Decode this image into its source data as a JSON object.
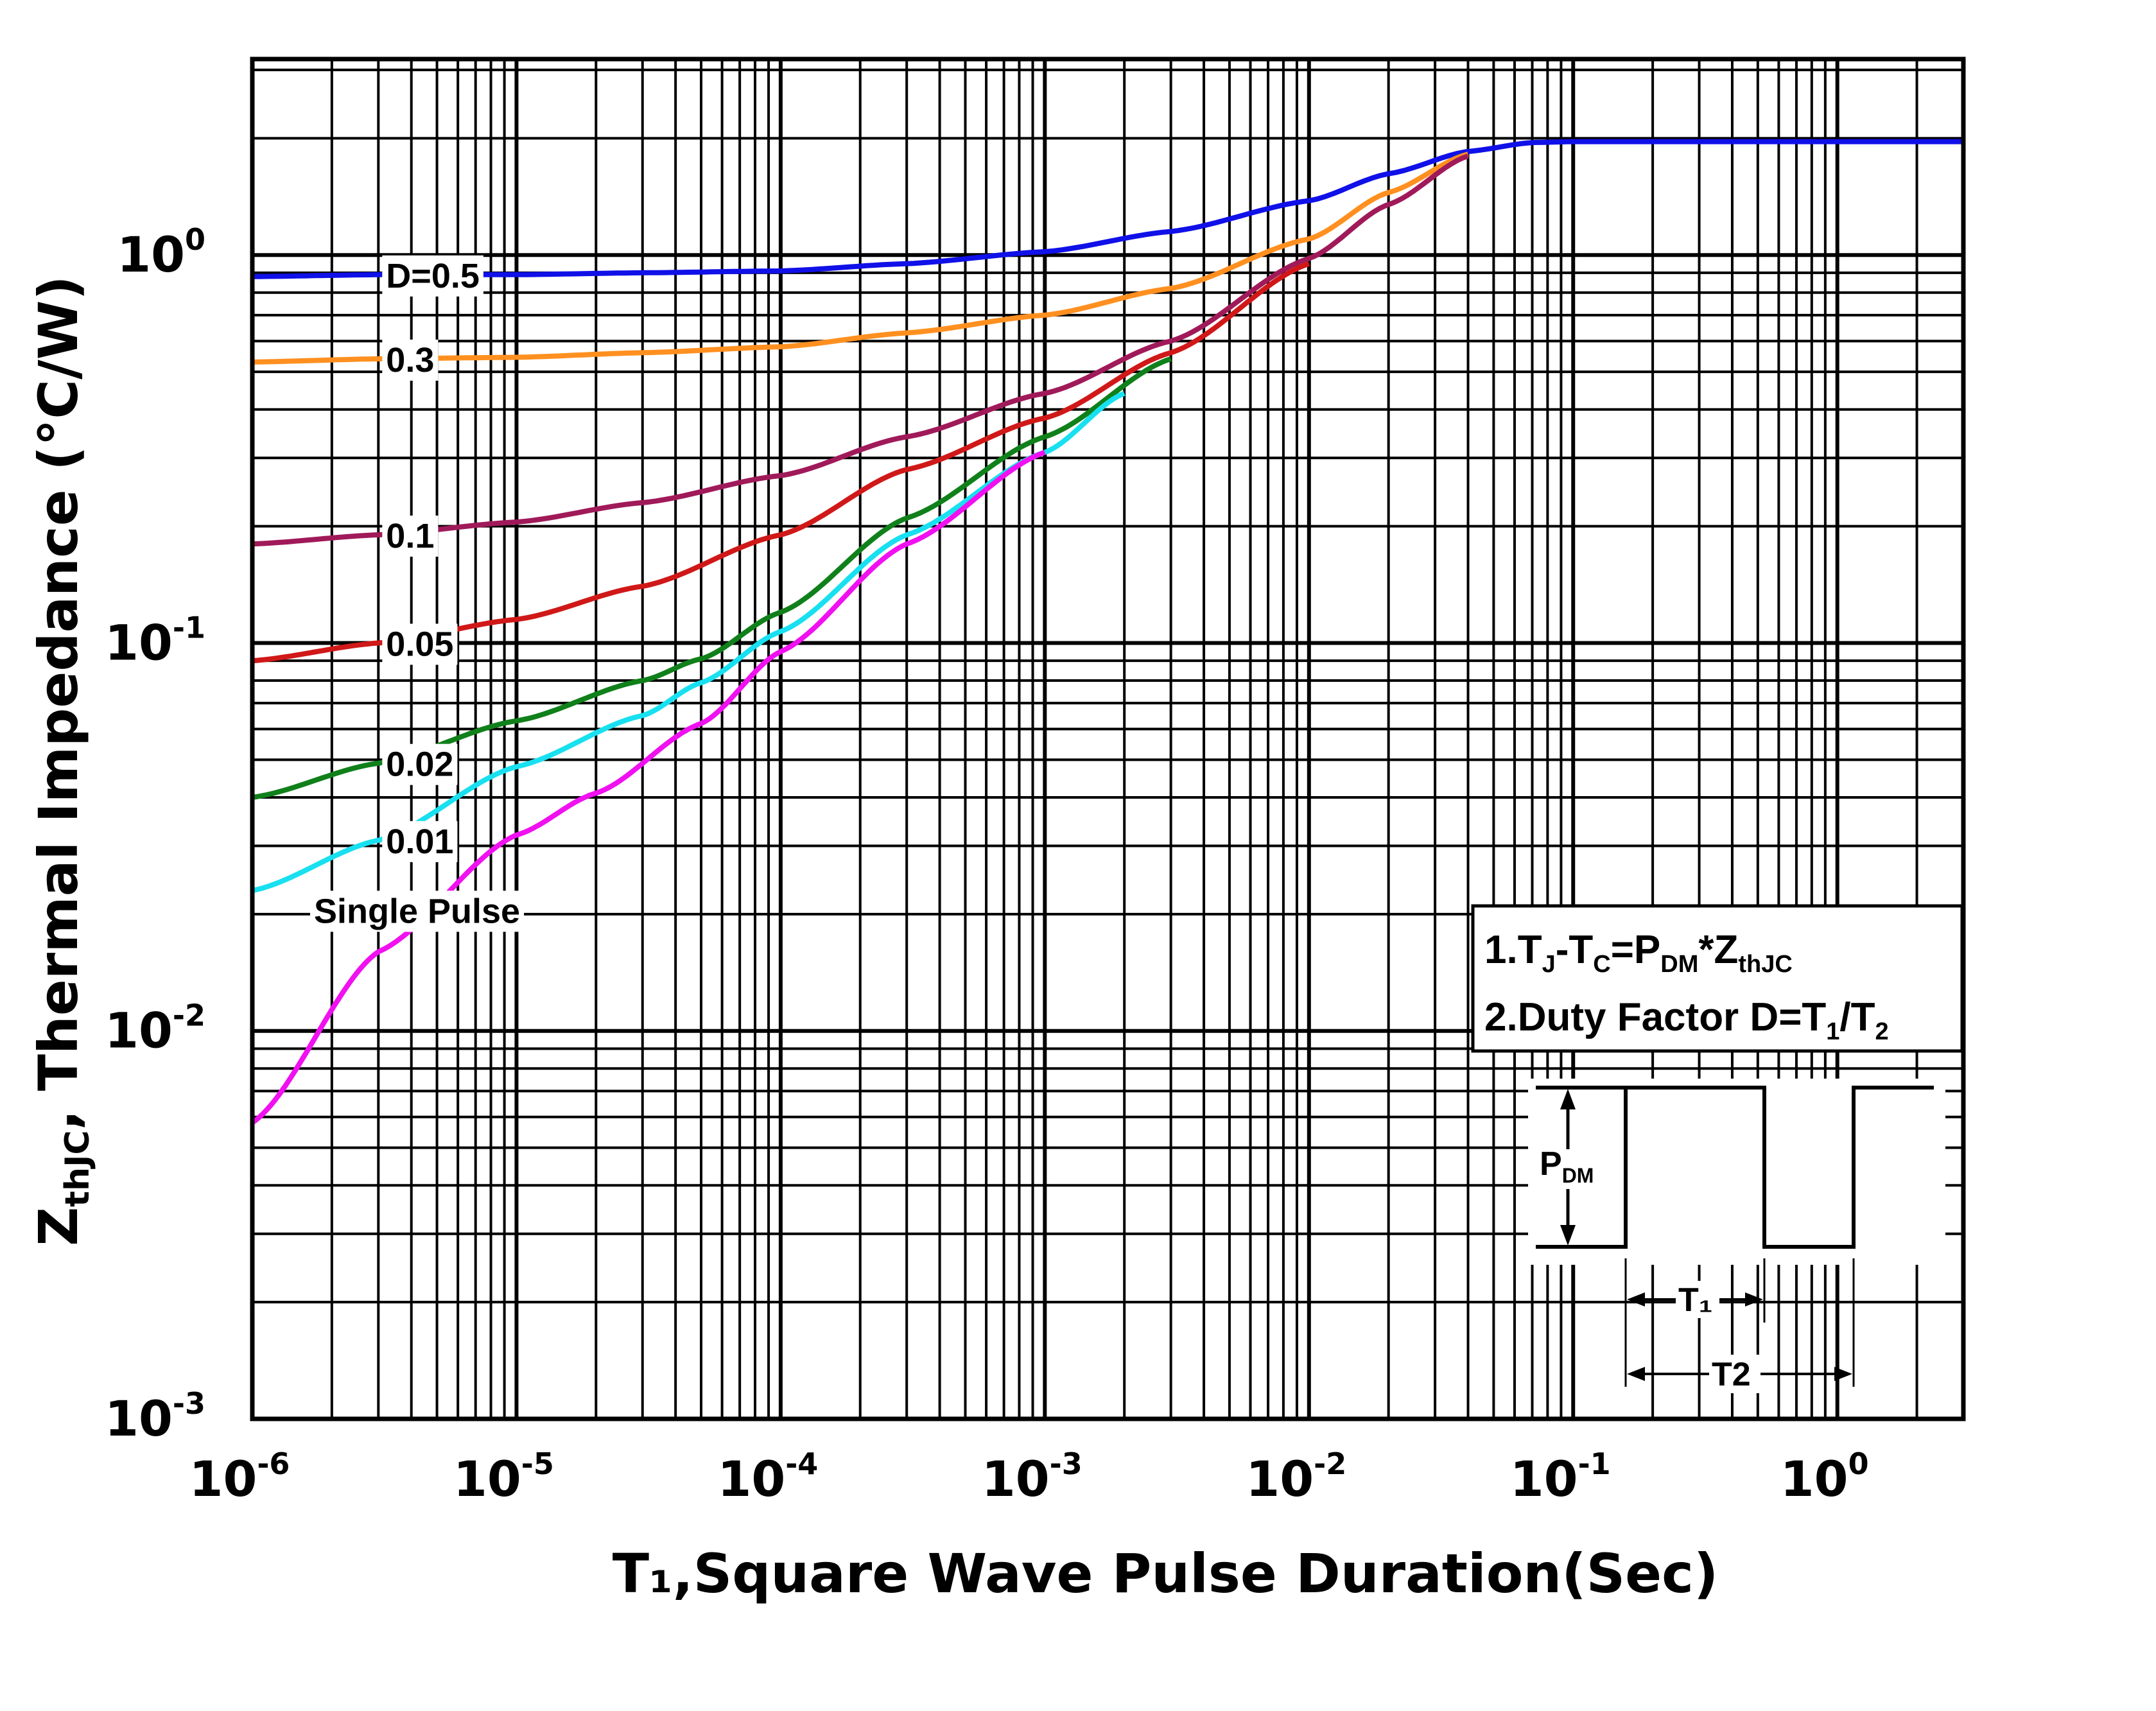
{
  "chart_data": {
    "type": "line",
    "xscale": "log",
    "yscale": "log",
    "xlim": [
      1e-06,
      3
    ],
    "ylim": [
      0.001,
      3.2
    ],
    "xlabel": "T₁,Square Wave Pulse Duration(Sec)",
    "ylabel": {
      "main": "Z",
      "sub": "thJC",
      "rest": ", Thermal  Impedance (°C/W)"
    },
    "grid": true,
    "x_ticks": [
      {
        "base": "10",
        "exp": "-6",
        "value": 1e-06
      },
      {
        "base": "10",
        "exp": "-5",
        "value": 1e-05
      },
      {
        "base": "10",
        "exp": "-4",
        "value": 0.0001
      },
      {
        "base": "10",
        "exp": "-3",
        "value": 0.001
      },
      {
        "base": "10",
        "exp": "-2",
        "value": 0.01
      },
      {
        "base": "10",
        "exp": "-1",
        "value": 0.1
      },
      {
        "base": "10",
        "exp": "0",
        "value": 1
      }
    ],
    "y_ticks": [
      {
        "base": "10",
        "exp": "0",
        "value": 1
      },
      {
        "base": "10",
        "exp": "-1",
        "value": 0.1
      },
      {
        "base": "10",
        "exp": "-2",
        "value": 0.01
      },
      {
        "base": "10",
        "exp": "-3",
        "value": 0.001
      }
    ],
    "series": [
      {
        "name": "D=0.5",
        "label": "D=0.5",
        "color": "#1010e8",
        "label_at": 3e-06,
        "x": [
          1e-06,
          3e-06,
          1e-05,
          3e-05,
          0.0001,
          0.0003,
          0.001,
          0.003,
          0.01,
          0.02,
          0.04,
          0.07,
          0.1,
          0.3,
          1,
          3
        ],
        "y": [
          0.88,
          0.89,
          0.89,
          0.9,
          0.91,
          0.95,
          1.02,
          1.15,
          1.38,
          1.62,
          1.85,
          1.95,
          1.96,
          1.96,
          1.96,
          1.96
        ]
      },
      {
        "name": "D=0.3",
        "label": "0.3",
        "color": "#ff9020",
        "label_at": 3e-06,
        "x": [
          1e-06,
          3e-06,
          1e-05,
          3e-05,
          0.0001,
          0.0003,
          0.001,
          0.003,
          0.01,
          0.02,
          0.04
        ],
        "y": [
          0.53,
          0.54,
          0.545,
          0.56,
          0.58,
          0.63,
          0.7,
          0.82,
          1.1,
          1.45,
          1.82
        ]
      },
      {
        "name": "D=0.1",
        "label": "0.1",
        "color": "#a01a5a",
        "label_at": 3e-06,
        "x": [
          1e-06,
          3e-06,
          1e-05,
          3e-05,
          0.0001,
          0.0003,
          0.001,
          0.003,
          0.01,
          0.02,
          0.04
        ],
        "y": [
          0.18,
          0.19,
          0.205,
          0.23,
          0.27,
          0.34,
          0.44,
          0.6,
          0.98,
          1.35,
          1.8
        ]
      },
      {
        "name": "D=0.05",
        "label": "0.05",
        "color": "#d01818",
        "label_at": 3e-06,
        "x": [
          1e-06,
          3e-06,
          1e-05,
          3e-05,
          0.0001,
          0.0003,
          0.001,
          0.003,
          0.01
        ],
        "y": [
          0.09,
          0.1,
          0.115,
          0.14,
          0.19,
          0.28,
          0.38,
          0.56,
          0.95
        ]
      },
      {
        "name": "D=0.02",
        "label": "0.02",
        "color": "#10801a",
        "label_at": 3e-06,
        "x": [
          1e-06,
          3e-06,
          1e-05,
          3e-05,
          5e-05,
          0.0001,
          0.0003,
          0.001,
          0.003
        ],
        "y": [
          0.04,
          0.049,
          0.063,
          0.08,
          0.091,
          0.12,
          0.21,
          0.34,
          0.54
        ]
      },
      {
        "name": "D=0.01",
        "label": "0.01",
        "color": "#18e0f0",
        "label_at": 3e-06,
        "x": [
          1e-06,
          3e-06,
          1e-05,
          3e-05,
          5e-05,
          0.0001,
          0.0003,
          0.001,
          0.002
        ],
        "y": [
          0.023,
          0.031,
          0.048,
          0.065,
          0.079,
          0.107,
          0.19,
          0.31,
          0.44
        ]
      },
      {
        "name": "Single Pulse",
        "label": "Single Pulse",
        "color": "#f010f0",
        "label_at": 1.5e-06,
        "x": [
          1e-06,
          3e-06,
          1e-05,
          2e-05,
          5e-05,
          0.0001,
          0.0003,
          0.001
        ],
        "y": [
          0.0058,
          0.016,
          0.032,
          0.041,
          0.062,
          0.095,
          0.18,
          0.31
        ]
      }
    ],
    "notes": {
      "line1": {
        "a": "1.T",
        "a_sub": "J",
        "b": "-T",
        "b_sub": "C",
        "c": "=P",
        "c_sub": "DM",
        "d": "*Z",
        "d_sub": "thJC"
      },
      "line2": {
        "a": "2.Duty Factor D=T",
        "a_sub": "1",
        "b": "/T",
        "b_sub": "2"
      }
    },
    "pulse_diagram": {
      "pdm_main": "P",
      "pdm_sub": "DM",
      "t1": "T₁",
      "t2": "T2"
    }
  }
}
